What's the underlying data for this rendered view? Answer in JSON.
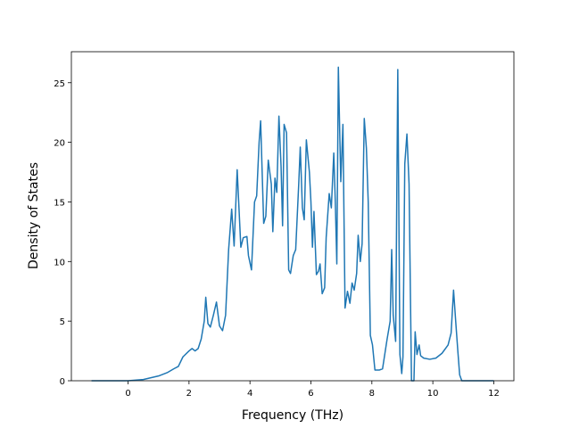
{
  "chart_data": {
    "type": "line",
    "x_label": "Frequency (THz)",
    "y_label": "Density of States",
    "color": "#1f77b4",
    "xlim": [
      -1.86,
      12.66
    ],
    "ylim": [
      0,
      27.6
    ],
    "xticks": [
      0,
      2,
      4,
      6,
      8,
      10,
      12
    ],
    "yticks": [
      0,
      5,
      10,
      15,
      20,
      25
    ],
    "x": [
      -1.2,
      0,
      0.5,
      1,
      1.3,
      1.5,
      1.65,
      1.8,
      2.0,
      2.1,
      2.2,
      2.3,
      2.4,
      2.5,
      2.55,
      2.62,
      2.7,
      2.8,
      2.9,
      3.0,
      3.1,
      3.2,
      3.3,
      3.4,
      3.48,
      3.58,
      3.7,
      3.78,
      3.9,
      3.95,
      4.05,
      4.15,
      4.22,
      4.3,
      4.35,
      4.45,
      4.52,
      4.6,
      4.7,
      4.75,
      4.82,
      4.88,
      4.95,
      5.02,
      5.07,
      5.12,
      5.2,
      5.27,
      5.33,
      5.42,
      5.5,
      5.6,
      5.65,
      5.72,
      5.78,
      5.85,
      5.95,
      6.0,
      6.05,
      6.1,
      6.18,
      6.25,
      6.3,
      6.37,
      6.45,
      6.5,
      6.6,
      6.67,
      6.75,
      6.8,
      6.85,
      6.9,
      6.98,
      7.05,
      7.12,
      7.2,
      7.28,
      7.35,
      7.42,
      7.5,
      7.55,
      7.62,
      7.68,
      7.75,
      7.82,
      7.88,
      7.95,
      8.02,
      8.1,
      8.25,
      8.35,
      8.5,
      8.6,
      8.65,
      8.7,
      8.78,
      8.85,
      8.92,
      8.98,
      9.02,
      9.08,
      9.15,
      9.22,
      9.3,
      9.38,
      9.42,
      9.48,
      9.55,
      9.6,
      9.7,
      9.9,
      10.1,
      10.3,
      10.5,
      10.6,
      10.68,
      10.75,
      10.82,
      10.88,
      10.95,
      12
    ],
    "values": [
      0,
      0,
      0.1,
      0.4,
      0.7,
      1.0,
      1.2,
      2.0,
      2.5,
      2.7,
      2.5,
      2.7,
      3.5,
      5,
      7,
      4.8,
      4.5,
      5.5,
      6.6,
      4.6,
      4.2,
      5.5,
      11,
      14.4,
      11.3,
      17.7,
      11.2,
      12,
      12.1,
      10.5,
      9.3,
      15,
      15.5,
      20,
      21.8,
      13.2,
      13.8,
      18.5,
      16.5,
      12.5,
      17,
      15.8,
      22.2,
      18,
      13,
      21.5,
      20.8,
      9.3,
      9,
      10.5,
      11,
      16.5,
      19.6,
      14.5,
      13.5,
      20.2,
      17.5,
      15,
      11.2,
      14.2,
      8.9,
      9.2,
      9.8,
      7.3,
      7.8,
      12,
      15.7,
      14.5,
      19.1,
      15,
      9.8,
      26.3,
      16.7,
      21.5,
      6.1,
      7.5,
      6.5,
      8.2,
      7.6,
      9,
      12.2,
      10,
      11.5,
      22,
      19.5,
      15,
      3.8,
      3,
      0.9,
      0.9,
      1,
      3.5,
      5,
      11,
      5.5,
      3.3,
      26.1,
      2.2,
      0.6,
      2,
      18.2,
      20.7,
      16.5,
      0,
      0,
      4.1,
      2.2,
      3,
      2.1,
      1.9,
      1.8,
      1.9,
      2.3,
      3,
      4,
      7.6,
      5,
      2.5,
      0.5,
      0,
      0
    ]
  }
}
